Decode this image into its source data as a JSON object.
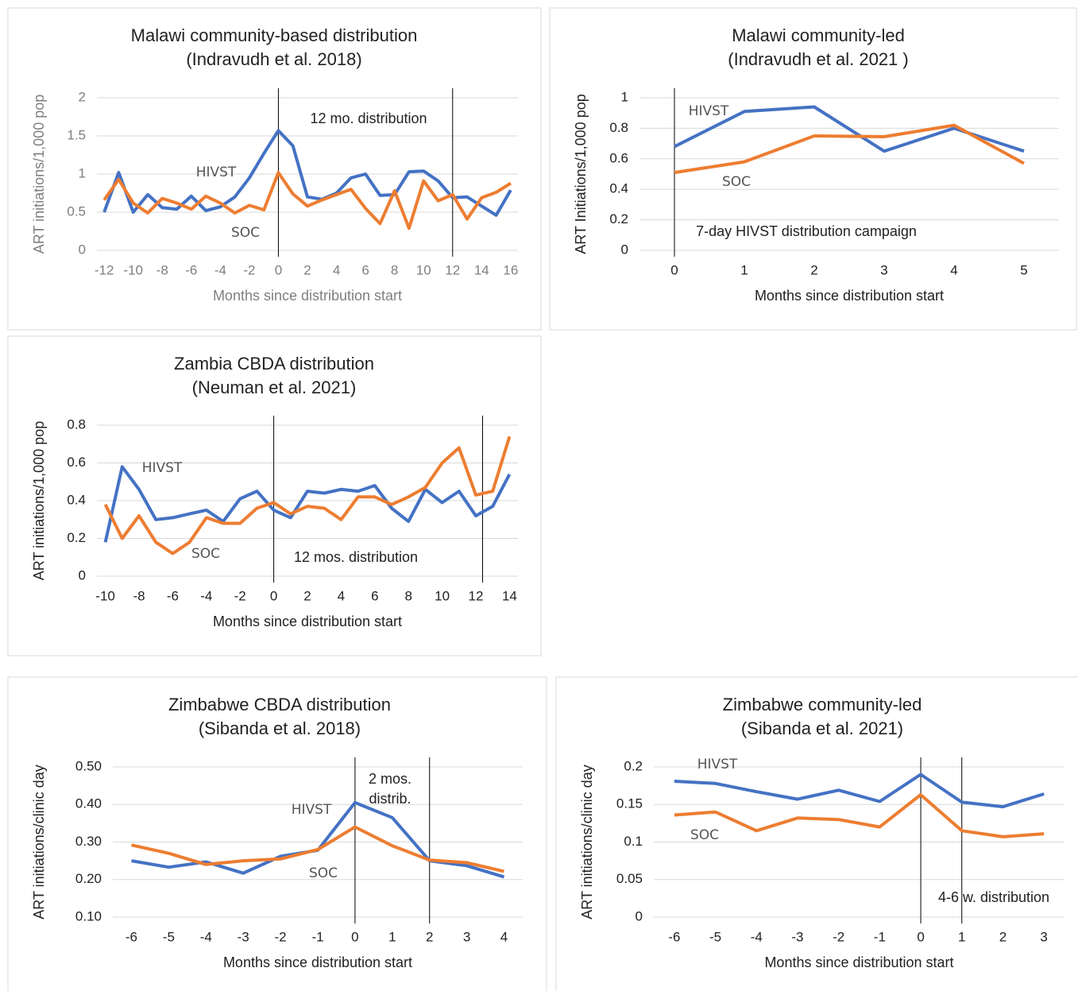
{
  "chart_data": [
    {
      "type": "line",
      "title": "Malawi community-based distribution",
      "subtitle": "(Indravudh et al. 2018)",
      "ylabel": "ART initiations/1,000 pop",
      "xlabel": "Months since distribution start",
      "x": [
        -12,
        -11,
        -10,
        -9,
        -8,
        -7,
        -6,
        -5,
        -4,
        -3,
        -2,
        -1,
        0,
        1,
        2,
        3,
        4,
        5,
        6,
        7,
        8,
        9,
        10,
        11,
        12,
        13,
        14,
        15,
        16
      ],
      "series": [
        {
          "name": "HIVST",
          "color": "#4472c4",
          "values": [
            0.5,
            1.02,
            0.5,
            0.73,
            0.56,
            0.54,
            0.71,
            0.52,
            0.57,
            0.7,
            0.95,
            1.27,
            1.57,
            1.37,
            0.7,
            0.67,
            0.75,
            0.95,
            1.0,
            0.72,
            0.73,
            1.03,
            1.04,
            0.91,
            0.69,
            0.7,
            0.58,
            0.46,
            0.79
          ]
        },
        {
          "name": "SOC",
          "color": "#ed7d31",
          "values": [
            0.66,
            0.93,
            0.62,
            0.49,
            0.68,
            0.62,
            0.54,
            0.71,
            0.62,
            0.49,
            0.59,
            0.53,
            1.02,
            0.74,
            0.58,
            0.66,
            0.73,
            0.8,
            0.55,
            0.35,
            0.78,
            0.29,
            0.91,
            0.65,
            0.73,
            0.41,
            0.69,
            0.76,
            0.88
          ]
        }
      ],
      "xlim": [
        -12.5,
        16.5
      ],
      "xticks": [
        -12,
        -10,
        -8,
        -6,
        -4,
        -2,
        0,
        2,
        4,
        6,
        8,
        10,
        12,
        14,
        16
      ],
      "ylim": [
        0,
        2
      ],
      "yticks": [
        0,
        0.5,
        1,
        1.5,
        2
      ],
      "grid": true,
      "vlines": [
        0,
        12
      ],
      "annotation": "12 mo. distribution"
    },
    {
      "type": "line",
      "title": "Malawi community-led",
      "subtitle": "(Indravudh et al. 2021 )",
      "ylabel": "ART Initiations/1,000 pop",
      "xlabel": "Months since distribution start",
      "x": [
        0,
        1,
        2,
        3,
        4,
        5
      ],
      "series": [
        {
          "name": "HIVST",
          "color": "#4472c4",
          "values": [
            0.68,
            0.91,
            0.94,
            0.65,
            0.8,
            0.65
          ]
        },
        {
          "name": "SOC",
          "color": "#ed7d31",
          "values": [
            0.51,
            0.58,
            0.75,
            0.745,
            0.82,
            0.57
          ]
        }
      ],
      "xlim": [
        -0.5,
        5.5
      ],
      "xticks": [
        0,
        1,
        2,
        3,
        4,
        5
      ],
      "ylim": [
        0,
        1
      ],
      "yticks": [
        0,
        0.2,
        0.4,
        0.6,
        0.8,
        1
      ],
      "grid": true,
      "vlines": [
        0
      ],
      "annotation": "7-day HIVST distribution campaign"
    },
    {
      "type": "line",
      "title": "Zambia CBDA distribution",
      "subtitle": "(Neuman et al. 2021)",
      "ylabel": "ART initiations/1,000 pop",
      "xlabel": "Months since distribution start",
      "x": [
        -10,
        -9,
        -8,
        -7,
        -6,
        -5,
        -4,
        -3,
        -2,
        -1,
        0,
        1,
        2,
        3,
        4,
        5,
        6,
        7,
        8,
        9,
        10,
        11,
        12,
        13,
        14
      ],
      "series": [
        {
          "name": "HIVST",
          "color": "#4472c4",
          "values": [
            0.18,
            0.58,
            0.46,
            0.3,
            0.31,
            0.33,
            0.35,
            0.29,
            0.41,
            0.45,
            0.35,
            0.31,
            0.45,
            0.44,
            0.46,
            0.45,
            0.48,
            0.36,
            0.29,
            0.46,
            0.39,
            0.45,
            0.32,
            0.37,
            0.54
          ]
        },
        {
          "name": "SOC",
          "color": "#ed7d31",
          "values": [
            0.38,
            0.2,
            0.32,
            0.18,
            0.12,
            0.18,
            0.31,
            0.28,
            0.28,
            0.36,
            0.39,
            0.33,
            0.37,
            0.36,
            0.3,
            0.42,
            0.42,
            0.38,
            0.42,
            0.47,
            0.6,
            0.68,
            0.43,
            0.45,
            0.74
          ]
        }
      ],
      "xlim": [
        -10.5,
        14.5
      ],
      "xticks": [
        -10,
        -8,
        -6,
        -4,
        -2,
        0,
        2,
        4,
        6,
        8,
        10,
        12,
        14
      ],
      "ylim": [
        0,
        0.8
      ],
      "yticks": [
        0,
        0.2,
        0.4,
        0.6,
        0.8
      ],
      "grid": true,
      "vlines": [
        0,
        12.4
      ],
      "annotation": "12 mos. distribution"
    },
    {
      "type": "line",
      "title": "Zimbabwe CBDA distribution",
      "subtitle": "(Sibanda et al. 2018)",
      "ylabel": "ART initiations/clinic day",
      "xlabel": "Months since distribution start",
      "x": [
        -6,
        -5,
        -4,
        -3,
        -2,
        -1,
        0,
        1,
        2,
        3,
        4
      ],
      "series": [
        {
          "name": "HIVST",
          "color": "#4472c4",
          "values": [
            0.25,
            0.233,
            0.247,
            0.217,
            0.262,
            0.278,
            0.405,
            0.365,
            0.25,
            0.237,
            0.207
          ]
        },
        {
          "name": "SOC",
          "color": "#ed7d31",
          "values": [
            0.292,
            0.27,
            0.24,
            0.25,
            0.255,
            0.28,
            0.34,
            0.29,
            0.252,
            0.245,
            0.222
          ]
        }
      ],
      "xlim": [
        -6.5,
        4.5
      ],
      "xticks": [
        -6,
        -5,
        -4,
        -3,
        -2,
        -1,
        0,
        1,
        2,
        3,
        4
      ],
      "ylim": [
        0.1,
        0.5
      ],
      "yticks": [
        {
          "value": 0.1,
          "label": "0.10"
        },
        {
          "value": 0.2,
          "label": "0.20"
        },
        {
          "value": 0.3,
          "label": "0.30"
        },
        {
          "value": 0.4,
          "label": "0.40"
        },
        {
          "value": 0.5,
          "label": "0.50"
        }
      ],
      "grid": true,
      "vlines": [
        0,
        2
      ],
      "annotation": [
        "2 mos.",
        "distrib."
      ]
    },
    {
      "type": "line",
      "title": "Zimbabwe community-led",
      "subtitle": "(Sibanda et al. 2021)",
      "ylabel": "ART initiations/clinic day",
      "xlabel": "Months since distribution start",
      "x": [
        -6,
        -5,
        -4,
        -3,
        -2,
        -1,
        0,
        1,
        2,
        3
      ],
      "series": [
        {
          "name": "HIVST",
          "color": "#4472c4",
          "values": [
            0.181,
            0.178,
            0.167,
            0.157,
            0.169,
            0.154,
            0.19,
            0.153,
            0.147,
            0.164
          ]
        },
        {
          "name": "SOC",
          "color": "#ed7d31",
          "values": [
            0.136,
            0.14,
            0.115,
            0.132,
            0.13,
            0.12,
            0.163,
            0.115,
            0.107,
            0.111
          ]
        }
      ],
      "xlim": [
        -6.5,
        3.5
      ],
      "xticks": [
        -6,
        -5,
        -4,
        -3,
        -2,
        -1,
        0,
        1,
        2,
        3
      ],
      "ylim": [
        0,
        0.2
      ],
      "yticks": [
        0,
        0.05,
        0.1,
        0.15,
        0.2
      ],
      "grid": true,
      "vlines": [
        0,
        1
      ],
      "annotation": "4-6 w. distribution"
    }
  ]
}
